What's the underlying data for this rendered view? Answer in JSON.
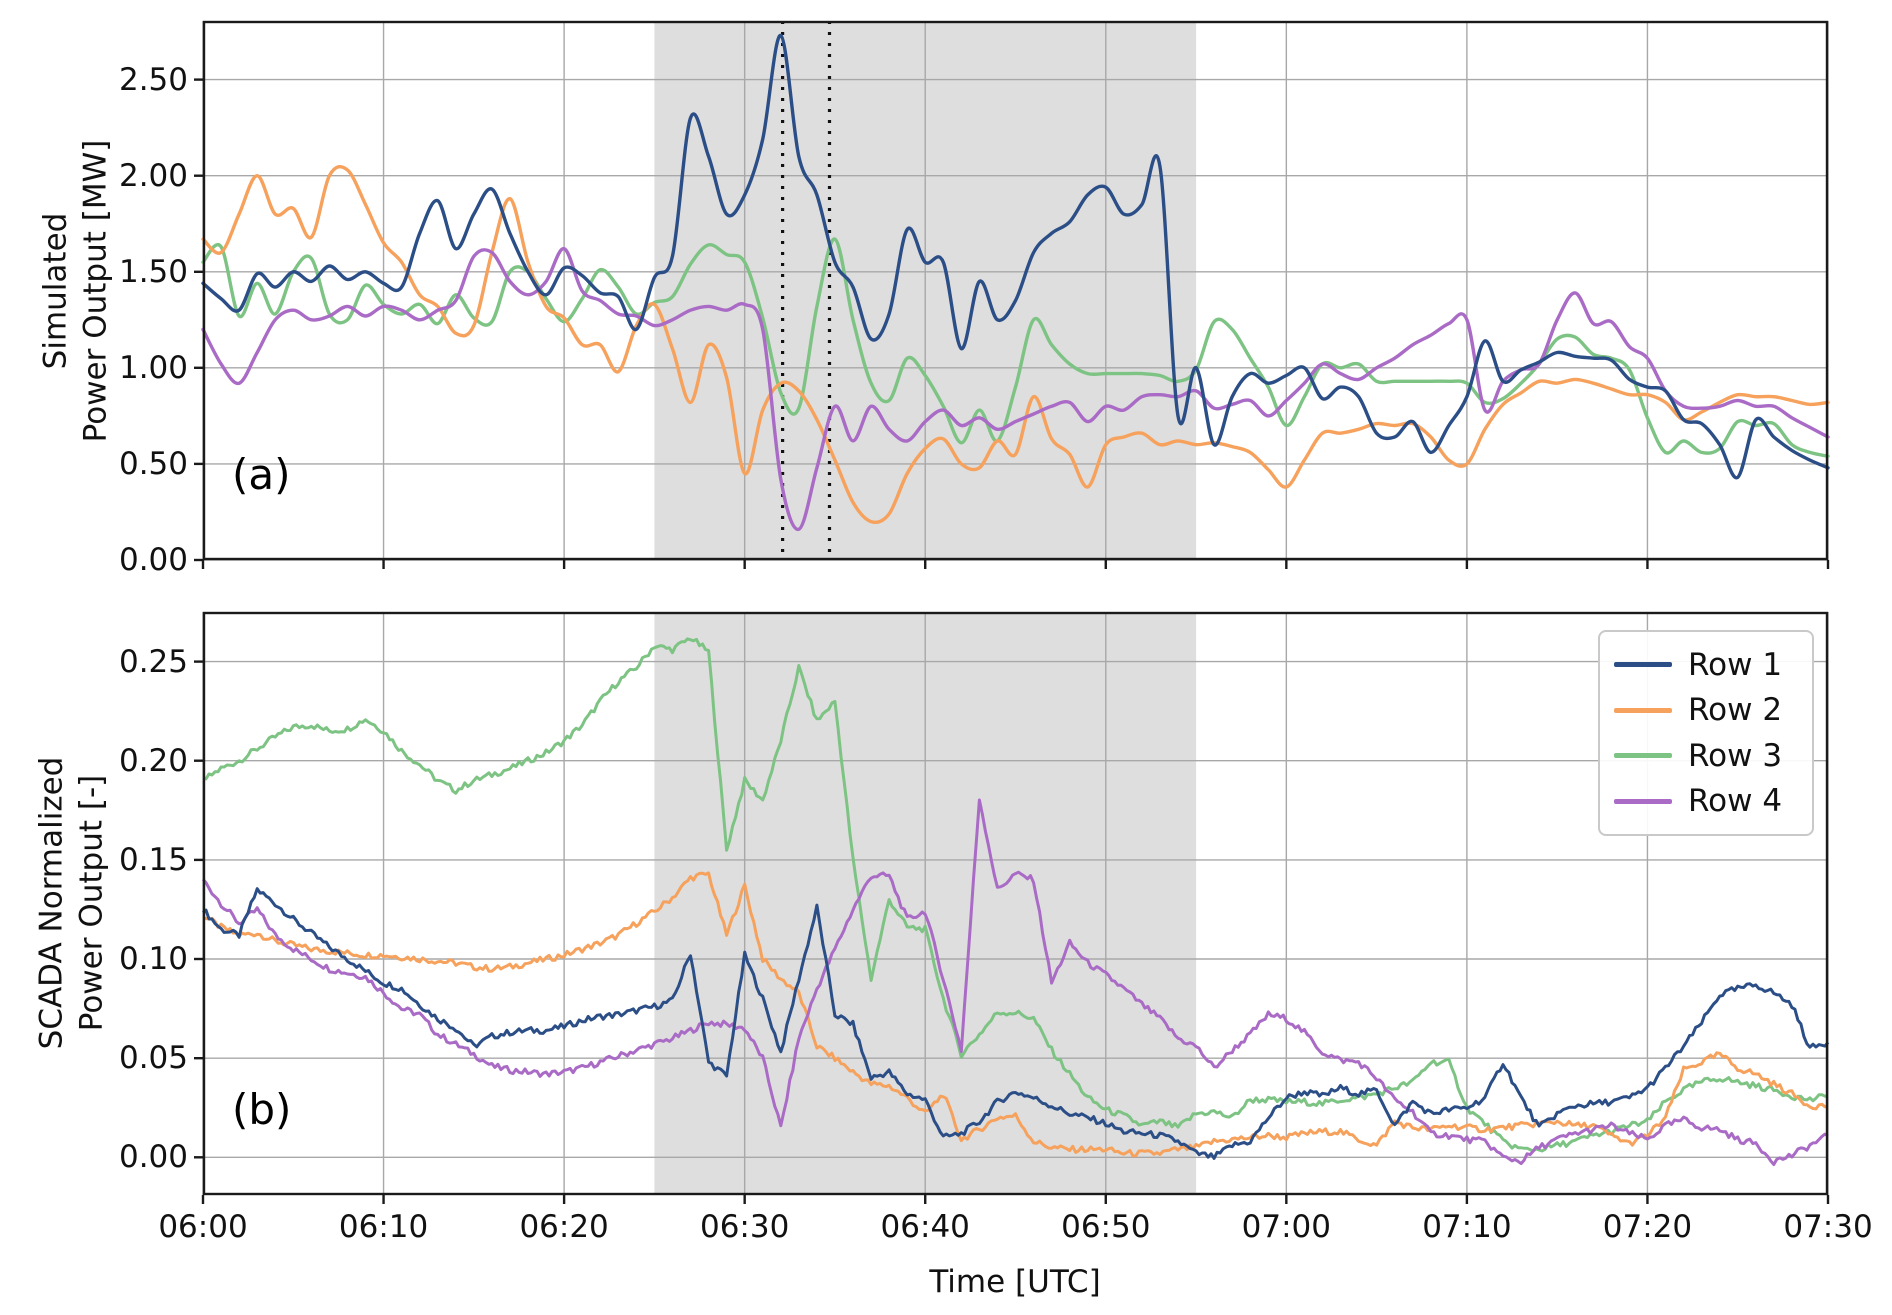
{
  "x_axis": {
    "xlabel": "Time [UTC]",
    "xlim_minutes": [
      0,
      90
    ],
    "ticks": [
      {
        "minutes": 0,
        "label": "06:00"
      },
      {
        "minutes": 10,
        "label": "06:10"
      },
      {
        "minutes": 20,
        "label": "06:20"
      },
      {
        "minutes": 30,
        "label": "06:30"
      },
      {
        "minutes": 40,
        "label": "06:40"
      },
      {
        "minutes": 50,
        "label": "06:50"
      },
      {
        "minutes": 60,
        "label": "07:00"
      },
      {
        "minutes": 70,
        "label": "07:10"
      },
      {
        "minutes": 80,
        "label": "07:20"
      },
      {
        "minutes": 90,
        "label": "07:30"
      }
    ]
  },
  "legend": {
    "position": "top-right-panel-b",
    "entries": [
      "Row 1",
      "Row 2",
      "Row 3",
      "Row 4"
    ]
  },
  "chart_data": [
    {
      "id": "a",
      "type": "line",
      "panel_label": "(a)",
      "ylabel_line1": "Simulated",
      "ylabel_line2": "Power Output [MW]",
      "ylim": [
        0,
        2.805
      ],
      "grid": true,
      "x_step_minutes": 1,
      "shaded_region_minutes": [
        25,
        55
      ],
      "dotted_vlines_minutes": [
        32.1,
        34.7
      ],
      "yticks": [
        {
          "value": 0.0,
          "label": "0.00"
        },
        {
          "value": 0.5,
          "label": "0.50"
        },
        {
          "value": 1.0,
          "label": "1.00"
        },
        {
          "value": 1.5,
          "label": "1.50"
        },
        {
          "value": 2.0,
          "label": "2.00"
        },
        {
          "value": 2.5,
          "label": "2.50"
        }
      ],
      "series": [
        {
          "name": "Row 1",
          "color": "#2b4e87",
          "values": [
            1.44,
            1.36,
            1.3,
            1.49,
            1.42,
            1.5,
            1.45,
            1.53,
            1.46,
            1.5,
            1.44,
            1.42,
            1.7,
            1.87,
            1.62,
            1.8,
            1.93,
            1.7,
            1.5,
            1.38,
            1.52,
            1.48,
            1.39,
            1.37,
            1.2,
            1.47,
            1.58,
            2.3,
            2.1,
            1.8,
            1.9,
            2.19,
            2.73,
            2.1,
            1.9,
            1.55,
            1.42,
            1.15,
            1.28,
            1.72,
            1.55,
            1.55,
            1.1,
            1.45,
            1.25,
            1.35,
            1.6,
            1.7,
            1.76,
            1.9,
            1.94,
            1.8,
            1.85,
            2.05,
            0.75,
            1.0,
            0.6,
            0.85,
            0.97,
            0.92,
            0.96,
            1.0,
            0.84,
            0.9,
            0.85,
            0.66,
            0.64,
            0.72,
            0.56,
            0.7,
            0.85,
            1.14,
            0.93,
            0.99,
            1.03,
            1.08,
            1.06,
            1.05,
            1.04,
            0.94,
            0.9,
            0.88,
            0.73,
            0.71,
            0.6,
            0.43,
            0.73,
            0.64,
            0.57,
            0.52,
            0.48
          ]
        },
        {
          "name": "Row 2",
          "color": "#f6a15c",
          "values": [
            1.67,
            1.6,
            1.8,
            2.0,
            1.8,
            1.83,
            1.68,
            2.0,
            2.03,
            1.85,
            1.65,
            1.55,
            1.38,
            1.32,
            1.18,
            1.22,
            1.6,
            1.88,
            1.55,
            1.32,
            1.26,
            1.12,
            1.12,
            0.98,
            1.22,
            1.33,
            1.1,
            0.82,
            1.12,
            0.95,
            0.45,
            0.78,
            0.92,
            0.88,
            0.73,
            0.52,
            0.3,
            0.2,
            0.24,
            0.45,
            0.58,
            0.63,
            0.5,
            0.48,
            0.62,
            0.55,
            0.85,
            0.63,
            0.55,
            0.38,
            0.6,
            0.64,
            0.66,
            0.6,
            0.62,
            0.6,
            0.61,
            0.59,
            0.56,
            0.47,
            0.38,
            0.52,
            0.66,
            0.66,
            0.68,
            0.71,
            0.7,
            0.71,
            0.64,
            0.52,
            0.5,
            0.68,
            0.81,
            0.87,
            0.93,
            0.92,
            0.94,
            0.92,
            0.89,
            0.86,
            0.86,
            0.82,
            0.73,
            0.77,
            0.82,
            0.86,
            0.85,
            0.85,
            0.83,
            0.81,
            0.82
          ]
        },
        {
          "name": "Row 3",
          "color": "#7dc383",
          "values": [
            1.55,
            1.63,
            1.27,
            1.44,
            1.28,
            1.5,
            1.57,
            1.28,
            1.25,
            1.43,
            1.33,
            1.28,
            1.33,
            1.23,
            1.38,
            1.26,
            1.24,
            1.5,
            1.5,
            1.36,
            1.24,
            1.36,
            1.51,
            1.42,
            1.28,
            1.34,
            1.37,
            1.54,
            1.64,
            1.59,
            1.55,
            1.26,
            0.87,
            0.79,
            1.32,
            1.67,
            1.25,
            0.92,
            0.83,
            1.05,
            0.96,
            0.8,
            0.61,
            0.78,
            0.62,
            0.9,
            1.25,
            1.12,
            1.02,
            0.97,
            0.97,
            0.97,
            0.97,
            0.96,
            0.93,
            0.99,
            1.24,
            1.2,
            1.05,
            0.9,
            0.7,
            0.85,
            1.02,
            1.0,
            1.02,
            0.93,
            0.93,
            0.93,
            0.93,
            0.93,
            0.92,
            0.82,
            0.84,
            0.92,
            1.02,
            1.15,
            1.16,
            1.07,
            1.05,
            0.99,
            0.74,
            0.56,
            0.62,
            0.56,
            0.58,
            0.72,
            0.7,
            0.71,
            0.6,
            0.56,
            0.54
          ]
        },
        {
          "name": "Row 4",
          "color": "#a96bc5",
          "values": [
            1.2,
            1.02,
            0.92,
            1.08,
            1.25,
            1.3,
            1.25,
            1.27,
            1.32,
            1.27,
            1.32,
            1.3,
            1.25,
            1.3,
            1.35,
            1.58,
            1.6,
            1.45,
            1.38,
            1.45,
            1.62,
            1.4,
            1.35,
            1.28,
            1.27,
            1.22,
            1.25,
            1.3,
            1.32,
            1.3,
            1.33,
            1.2,
            0.42,
            0.16,
            0.48,
            0.8,
            0.62,
            0.8,
            0.68,
            0.62,
            0.72,
            0.78,
            0.7,
            0.74,
            0.68,
            0.72,
            0.76,
            0.8,
            0.82,
            0.72,
            0.8,
            0.78,
            0.85,
            0.86,
            0.85,
            0.88,
            0.79,
            0.81,
            0.83,
            0.75,
            0.83,
            0.92,
            1.02,
            0.97,
            0.94,
            1.0,
            1.05,
            1.12,
            1.17,
            1.23,
            1.25,
            0.78,
            0.93,
            0.99,
            1.02,
            1.25,
            1.39,
            1.23,
            1.24,
            1.11,
            1.05,
            0.88,
            0.8,
            0.79,
            0.8,
            0.83,
            0.8,
            0.8,
            0.74,
            0.69,
            0.64
          ]
        }
      ]
    },
    {
      "id": "b",
      "type": "line",
      "panel_label": "(b)",
      "ylabel_line1": "SCADA Normalized",
      "ylabel_line2": "Power Output [-]",
      "ylim": [
        -0.019,
        0.275
      ],
      "grid": true,
      "x_step_minutes": 1,
      "shaded_region_minutes": [
        25,
        55
      ],
      "dotted_vlines_minutes": [],
      "yticks": [
        {
          "value": 0.0,
          "label": "0.00"
        },
        {
          "value": 0.05,
          "label": "0.05"
        },
        {
          "value": 0.1,
          "label": "0.10"
        },
        {
          "value": 0.15,
          "label": "0.15"
        },
        {
          "value": 0.2,
          "label": "0.20"
        },
        {
          "value": 0.25,
          "label": "0.25"
        }
      ],
      "series": [
        {
          "name": "Row 1",
          "color": "#2b4e87",
          "values": [
            0.125,
            0.115,
            0.112,
            0.135,
            0.128,
            0.12,
            0.113,
            0.106,
            0.1,
            0.094,
            0.088,
            0.085,
            0.077,
            0.07,
            0.065,
            0.056,
            0.061,
            0.063,
            0.064,
            0.064,
            0.066,
            0.069,
            0.071,
            0.072,
            0.074,
            0.076,
            0.079,
            0.103,
            0.048,
            0.041,
            0.102,
            0.08,
            0.053,
            0.09,
            0.126,
            0.072,
            0.067,
            0.04,
            0.043,
            0.032,
            0.029,
            0.01,
            0.012,
            0.018,
            0.028,
            0.033,
            0.03,
            0.026,
            0.022,
            0.02,
            0.017,
            0.013,
            0.012,
            0.011,
            0.008,
            0.002,
            0.0,
            0.006,
            0.008,
            0.02,
            0.03,
            0.033,
            0.031,
            0.035,
            0.032,
            0.034,
            0.016,
            0.028,
            0.022,
            0.024,
            0.025,
            0.03,
            0.048,
            0.03,
            0.015,
            0.022,
            0.026,
            0.027,
            0.028,
            0.03,
            0.035,
            0.045,
            0.056,
            0.068,
            0.082,
            0.085,
            0.087,
            0.083,
            0.077,
            0.055,
            0.058
          ]
        },
        {
          "name": "Row 2",
          "color": "#f6a15c",
          "values": [
            0.122,
            0.116,
            0.112,
            0.113,
            0.109,
            0.107,
            0.105,
            0.104,
            0.103,
            0.102,
            0.102,
            0.101,
            0.1,
            0.099,
            0.098,
            0.096,
            0.095,
            0.096,
            0.098,
            0.1,
            0.102,
            0.105,
            0.108,
            0.112,
            0.118,
            0.124,
            0.131,
            0.141,
            0.143,
            0.112,
            0.137,
            0.1,
            0.09,
            0.083,
            0.056,
            0.05,
            0.043,
            0.037,
            0.036,
            0.03,
            0.022,
            0.032,
            0.009,
            0.014,
            0.02,
            0.021,
            0.008,
            0.005,
            0.004,
            0.004,
            0.004,
            0.002,
            0.002,
            0.002,
            0.004,
            0.005,
            0.008,
            0.009,
            0.01,
            0.011,
            0.01,
            0.012,
            0.013,
            0.013,
            0.009,
            0.006,
            0.018,
            0.015,
            0.014,
            0.016,
            0.015,
            0.014,
            0.015,
            0.016,
            0.017,
            0.018,
            0.016,
            0.016,
            0.011,
            0.007,
            0.011,
            0.02,
            0.044,
            0.048,
            0.052,
            0.045,
            0.042,
            0.037,
            0.032,
            0.026,
            0.026
          ]
        },
        {
          "name": "Row 3",
          "color": "#7dc383",
          "values": [
            0.19,
            0.196,
            0.2,
            0.206,
            0.212,
            0.217,
            0.218,
            0.215,
            0.216,
            0.221,
            0.215,
            0.205,
            0.198,
            0.19,
            0.185,
            0.19,
            0.193,
            0.196,
            0.2,
            0.204,
            0.21,
            0.218,
            0.23,
            0.24,
            0.247,
            0.258,
            0.256,
            0.262,
            0.255,
            0.155,
            0.19,
            0.18,
            0.21,
            0.247,
            0.22,
            0.23,
            0.15,
            0.09,
            0.13,
            0.116,
            0.115,
            0.08,
            0.052,
            0.062,
            0.073,
            0.073,
            0.07,
            0.054,
            0.042,
            0.03,
            0.024,
            0.021,
            0.016,
            0.018,
            0.015,
            0.022,
            0.023,
            0.02,
            0.029,
            0.029,
            0.028,
            0.028,
            0.027,
            0.029,
            0.03,
            0.032,
            0.035,
            0.038,
            0.048,
            0.048,
            0.025,
            0.017,
            0.008,
            0.004,
            0.004,
            0.006,
            0.008,
            0.011,
            0.013,
            0.016,
            0.018,
            0.028,
            0.034,
            0.038,
            0.04,
            0.038,
            0.036,
            0.034,
            0.031,
            0.029,
            0.031
          ]
        },
        {
          "name": "Row 4",
          "color": "#a96bc5",
          "values": [
            0.14,
            0.128,
            0.118,
            0.125,
            0.112,
            0.105,
            0.1,
            0.095,
            0.093,
            0.091,
            0.083,
            0.075,
            0.072,
            0.062,
            0.057,
            0.052,
            0.046,
            0.044,
            0.043,
            0.042,
            0.043,
            0.045,
            0.048,
            0.051,
            0.054,
            0.057,
            0.06,
            0.064,
            0.068,
            0.067,
            0.065,
            0.05,
            0.015,
            0.06,
            0.085,
            0.105,
            0.125,
            0.142,
            0.142,
            0.12,
            0.124,
            0.09,
            0.054,
            0.181,
            0.135,
            0.143,
            0.14,
            0.088,
            0.108,
            0.098,
            0.092,
            0.085,
            0.077,
            0.07,
            0.06,
            0.056,
            0.045,
            0.054,
            0.062,
            0.072,
            0.07,
            0.063,
            0.053,
            0.049,
            0.048,
            0.04,
            0.029,
            0.023,
            0.012,
            0.011,
            0.009,
            0.008,
            0.0,
            -0.002,
            0.005,
            0.009,
            0.012,
            0.014,
            0.016,
            0.012,
            0.009,
            0.016,
            0.019,
            0.015,
            0.014,
            0.009,
            0.007,
            -0.002,
            0.001,
            0.006,
            0.011
          ]
        }
      ]
    }
  ]
}
